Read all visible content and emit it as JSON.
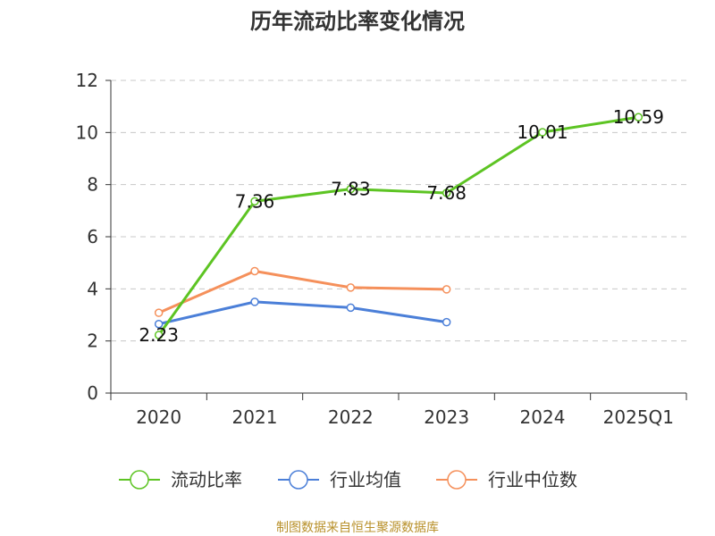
{
  "chart_data": {
    "type": "line",
    "title": "历年流动比率变化情况",
    "xlabel": "",
    "ylabel": "",
    "categories": [
      "2020",
      "2021",
      "2022",
      "2023",
      "2024",
      "2025Q1"
    ],
    "ylim": [
      0,
      12
    ],
    "yticks": [
      "0",
      "2",
      "4",
      "6",
      "8",
      "10",
      "12"
    ],
    "grid": true,
    "legend_position": "bottom",
    "series": [
      {
        "name": "流动比率",
        "color": "#5dc423",
        "values": [
          2.23,
          7.36,
          7.83,
          7.68,
          10.01,
          10.59
        ],
        "labels": [
          "2.23",
          "7.36",
          "7.83",
          "7.68",
          "10.01",
          "10.59"
        ]
      },
      {
        "name": "行业均值",
        "color": "#4b7fd8",
        "values": [
          2.65,
          3.5,
          3.28,
          2.72,
          null,
          null
        ]
      },
      {
        "name": "行业中位数",
        "color": "#f5905b",
        "values": [
          3.08,
          4.68,
          4.05,
          3.98,
          null,
          null
        ]
      }
    ]
  },
  "footer": {
    "source": "制图数据来自恒生聚源数据库",
    "source_color": "#b8902a"
  }
}
